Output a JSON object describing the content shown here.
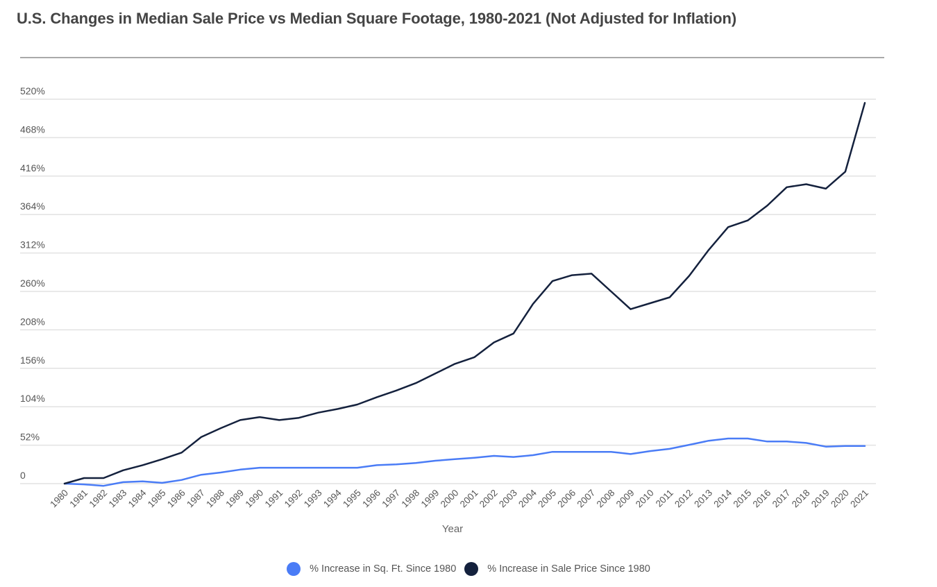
{
  "chart_data": {
    "type": "line",
    "title": "U.S. Changes in Median Sale Price vs Median Square Footage, 1980-2021 (Not Adjusted for Inflation)",
    "xlabel": "Year",
    "ylabel": "",
    "ylim": [
      0,
      520
    ],
    "yticks": [
      0,
      52,
      104,
      156,
      208,
      260,
      312,
      364,
      416,
      468,
      520
    ],
    "ytick_labels": [
      "0",
      "52%",
      "104%",
      "156%",
      "208%",
      "260%",
      "312%",
      "364%",
      "416%",
      "468%",
      "520%"
    ],
    "grid": true,
    "legend_position": "bottom",
    "x": [
      "1980",
      "1981",
      "1982",
      "1983",
      "1984",
      "1985",
      "1986",
      "1987",
      "1988",
      "1989",
      "1990",
      "1991",
      "1992",
      "1993",
      "1994",
      "1995",
      "1996",
      "1997",
      "1998",
      "1999",
      "2000",
      "2001",
      "2002",
      "2003",
      "2004",
      "2005",
      "2006",
      "2007",
      "2008",
      "2009",
      "2010",
      "2011",
      "2012",
      "2013",
      "2014",
      "2015",
      "2016",
      "2017",
      "2018",
      "2019",
      "2020",
      "2021"
    ],
    "series": [
      {
        "name": "% Increase in Sq. Ft. Since 1980",
        "color": "#4a7cf6",
        "values": [
          0,
          -1,
          -3,
          2,
          3,
          1,
          5,
          12,
          15,
          19,
          21.5,
          21.5,
          21.5,
          21.5,
          21.5,
          21.5,
          25,
          26,
          28,
          31,
          33,
          35,
          37.5,
          36,
          38.5,
          43,
          43,
          43,
          43,
          40,
          44,
          47,
          52.5,
          58,
          61,
          61,
          57,
          57,
          55,
          50,
          51,
          51
        ]
      },
      {
        "name": "% Increase in Sale Price Since 1980",
        "color": "#14213d",
        "values": [
          0,
          7.5,
          7.5,
          18,
          25,
          33,
          42,
          63,
          75,
          86,
          90,
          86,
          89,
          96,
          101,
          107,
          117,
          126,
          136,
          149,
          162,
          171,
          191,
          203,
          243,
          274,
          282,
          284,
          260,
          236,
          244,
          252,
          281,
          316,
          347,
          356,
          376,
          401,
          405,
          399,
          422,
          515
        ]
      }
    ]
  }
}
